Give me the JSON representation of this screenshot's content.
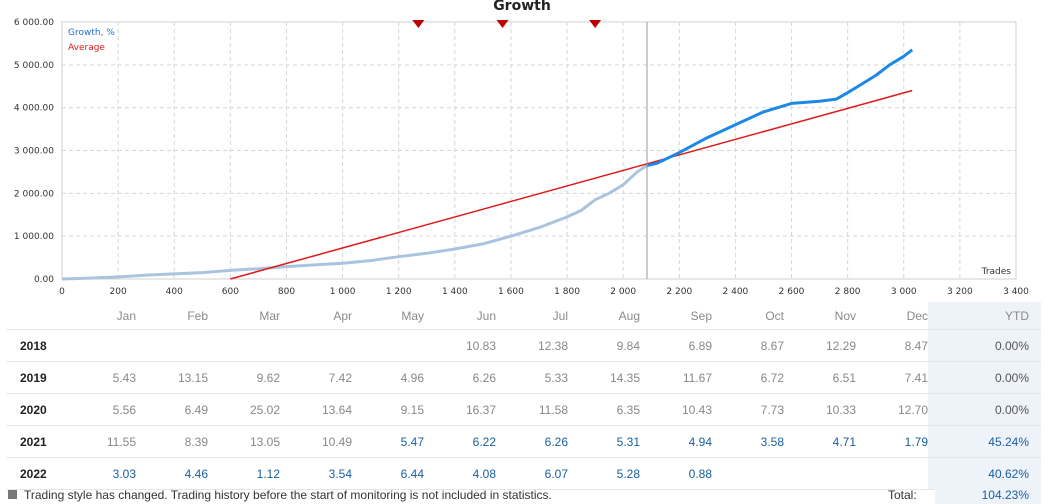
{
  "chart_data": {
    "type": "line",
    "title": "Growth",
    "xlabel": "Trades",
    "xlim": [
      0,
      3400
    ],
    "ylim": [
      0,
      6000
    ],
    "x_ticks": [
      "0",
      "200",
      "400",
      "600",
      "800",
      "1 000",
      "1 200",
      "1 400",
      "1 600",
      "1 800",
      "2 000",
      "2 200",
      "2 400",
      "2 600",
      "2 800",
      "3 000",
      "3 200",
      "3 400"
    ],
    "y_ticks": [
      "0.00",
      "1 000.00",
      "2 000.00",
      "3 000.00",
      "4 000.00",
      "5 000.00",
      "6 000.00"
    ],
    "grid": true,
    "legend_position": "top-left",
    "colors": {
      "history": "#a9c4e0",
      "growth": "#1e88e5",
      "average": "#e0191b",
      "marker": "#c00000"
    },
    "monitoring_start_x": 2085,
    "markers_x": [
      1270,
      1570,
      1900
    ],
    "series": [
      {
        "name": "Growth, %",
        "x": [
          0,
          100,
          200,
          300,
          400,
          500,
          600,
          700,
          800,
          900,
          1000,
          1100,
          1200,
          1300,
          1400,
          1500,
          1600,
          1700,
          1800,
          1850,
          1900,
          1950,
          2000,
          2050,
          2085,
          2120,
          2200,
          2300,
          2400,
          2500,
          2600,
          2700,
          2760,
          2800,
          2850,
          2900,
          2950,
          3000,
          3030
        ],
        "y": [
          0,
          20,
          50,
          90,
          120,
          150,
          200,
          240,
          290,
          330,
          370,
          430,
          520,
          600,
          700,
          820,
          1000,
          1200,
          1450,
          1600,
          1850,
          2000,
          2200,
          2500,
          2650,
          2700,
          2950,
          3300,
          3600,
          3900,
          4100,
          4150,
          4200,
          4350,
          4550,
          4750,
          5000,
          5200,
          5350
        ]
      },
      {
        "name": "Average",
        "x": [
          600,
          3030
        ],
        "y": [
          0,
          4400
        ]
      }
    ]
  },
  "table": {
    "headers": [
      "",
      "Jan",
      "Feb",
      "Mar",
      "Apr",
      "May",
      "Jun",
      "Jul",
      "Aug",
      "Sep",
      "Oct",
      "Nov",
      "Dec",
      "YTD"
    ],
    "rows": [
      {
        "year": "2018",
        "values": [
          "",
          "",
          "",
          "",
          "",
          "10.83",
          "12.38",
          "9.84",
          "6.89",
          "8.67",
          "12.29",
          "8.47"
        ],
        "ytd": "0.00%",
        "live_from": 99
      },
      {
        "year": "2019",
        "values": [
          "5.43",
          "13.15",
          "9.62",
          "7.42",
          "4.96",
          "6.26",
          "5.33",
          "14.35",
          "11.67",
          "6.72",
          "6.51",
          "7.41"
        ],
        "ytd": "0.00%",
        "live_from": 99
      },
      {
        "year": "2020",
        "values": [
          "5.56",
          "6.49",
          "25.02",
          "13.64",
          "9.15",
          "16.37",
          "11.58",
          "6.35",
          "10.43",
          "7.73",
          "10.33",
          "12.70"
        ],
        "ytd": "0.00%",
        "live_from": 99
      },
      {
        "year": "2021",
        "values": [
          "11.55",
          "8.39",
          "13.05",
          "10.49",
          "5.47",
          "6.22",
          "6.26",
          "5.31",
          "4.94",
          "3.58",
          "4.71",
          "1.79"
        ],
        "ytd": "45.24%",
        "live_from": 4
      },
      {
        "year": "2022",
        "values": [
          "3.03",
          "4.46",
          "1.12",
          "3.54",
          "6.44",
          "4.08",
          "6.07",
          "5.28",
          "0.88",
          "",
          "",
          ""
        ],
        "ytd": "40.62%",
        "live_from": 0
      }
    ]
  },
  "footer": {
    "note": "Trading style has changed. Trading history before the start of monitoring is not included in statistics.",
    "total_label": "Total:",
    "total_value": "104.23%"
  }
}
